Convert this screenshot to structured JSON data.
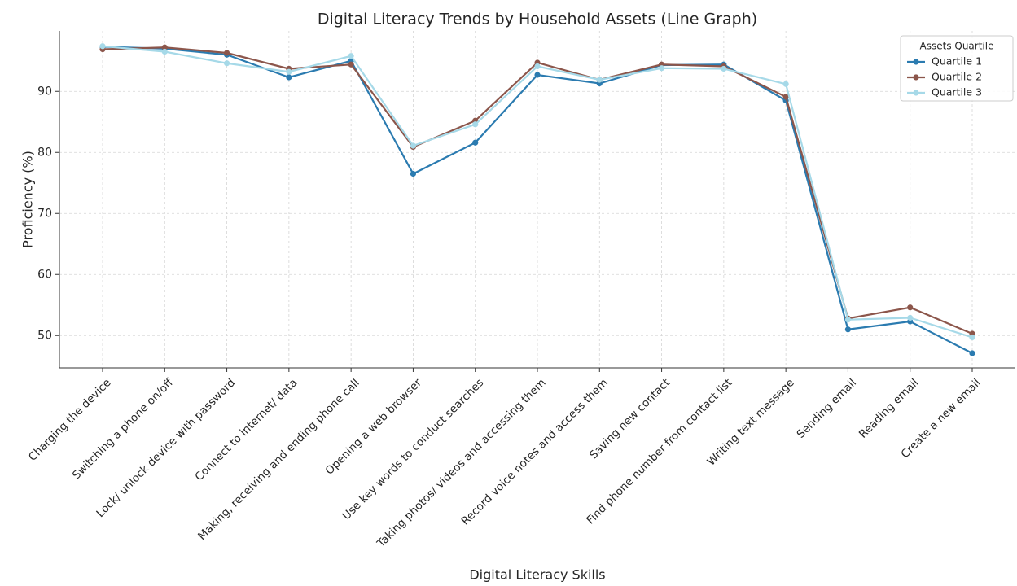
{
  "chart_data": {
    "type": "line",
    "title": "Digital Literacy Trends by Household Assets (Line Graph)",
    "x_label": "Digital Literacy Skills",
    "y_label": "Proficiency (%)",
    "categories": [
      "Charging the device",
      "Switching a phone on/off",
      "Lock/ unlock device with password",
      "Connect to internet/ data",
      "Making, receiving and ending phone call",
      "Opening a web browser",
      "Use key words to conduct searches",
      "Taking photos/ videos and accessing them",
      "Record voice notes and access them",
      "Saving new contact",
      "Find phone number from contact list",
      "Writing text message",
      "Sending email",
      "Reading email",
      "Create a new email"
    ],
    "series": [
      {
        "name": "Quartile 1",
        "color": "#2b7bb0",
        "values": [
          97.3,
          97.0,
          96.0,
          92.3,
          95.0,
          76.5,
          81.6,
          92.7,
          91.3,
          94.3,
          94.4,
          88.5,
          51.0,
          52.3,
          47.1
        ]
      },
      {
        "name": "Quartile 2",
        "color": "#8c564b",
        "values": [
          96.9,
          97.2,
          96.3,
          93.7,
          94.4,
          80.9,
          85.2,
          94.7,
          91.9,
          94.4,
          94.1,
          89.1,
          52.8,
          54.6,
          50.3
        ]
      },
      {
        "name": "Quartile 3",
        "color": "#a6d9e8",
        "values": [
          97.4,
          96.5,
          94.6,
          93.2,
          95.8,
          81.1,
          84.6,
          94.1,
          91.9,
          93.8,
          93.7,
          91.2,
          52.6,
          52.9,
          49.7
        ]
      }
    ],
    "ylim": [
      44.7,
      99.9
    ],
    "yticks": [
      50,
      60,
      70,
      80,
      90
    ],
    "grid": true,
    "legend": {
      "title": "Assets Quartile",
      "position": "upper right"
    }
  }
}
